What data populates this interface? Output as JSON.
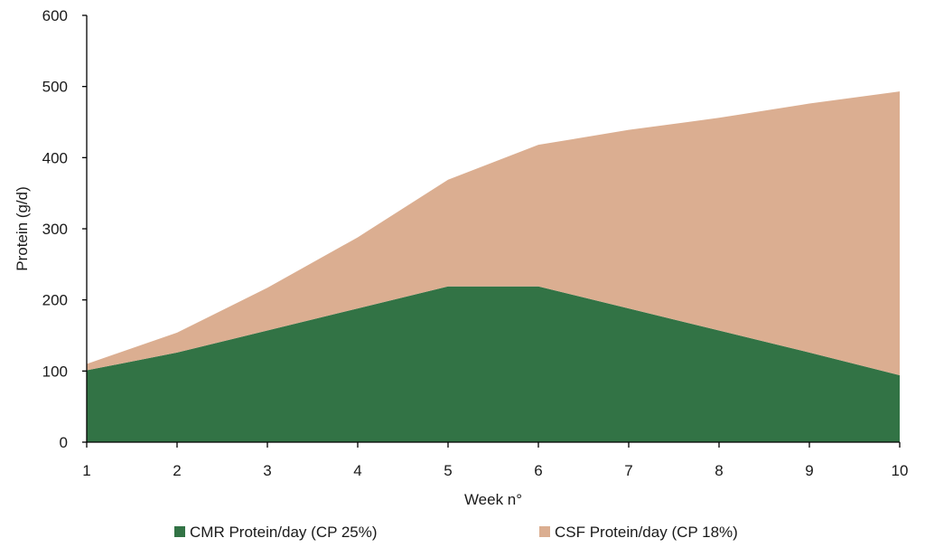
{
  "chart_data": {
    "type": "area",
    "stacked": true,
    "title": "",
    "xlabel": "Week n°",
    "ylabel": "Protein (g/d)",
    "x": [
      1,
      2,
      3,
      4,
      5,
      6,
      7,
      8,
      9,
      10
    ],
    "ylim": [
      0,
      600
    ],
    "yticks": [
      0,
      100,
      200,
      300,
      400,
      500,
      600
    ],
    "grid": false,
    "legend_position": "bottom",
    "series": [
      {
        "name": "CMR Protein/day (CP 25%)",
        "color": "#327345",
        "values": [
          101,
          126,
          157,
          188,
          219,
          219,
          188,
          157,
          126,
          94
        ]
      },
      {
        "name": "CSF Protein/day (CP 18%)",
        "color": "#dbae91",
        "values": [
          9,
          28,
          60,
          100,
          150,
          199,
          251,
          299,
          350,
          399
        ]
      }
    ]
  }
}
